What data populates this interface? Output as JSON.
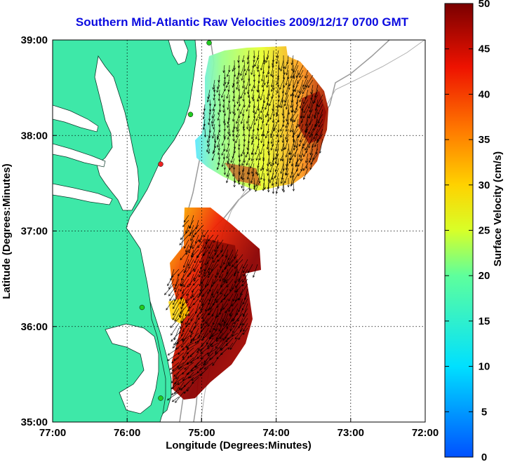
{
  "title": "Southern Mid-Atlantic Raw Velocities 2009/12/17 0700 GMT",
  "axes": {
    "xlabel": "Longitude (Degrees:Minutes)",
    "ylabel": "Latitude (Degrees:Minutes)",
    "xticks": [
      "77:00",
      "76:00",
      "75:00",
      "74:00",
      "73:00",
      "72:00"
    ],
    "yticks": [
      "39:00",
      "38:00",
      "37:00",
      "36:00",
      "35:00"
    ],
    "xlim": [
      -77,
      -72
    ],
    "ylim": [
      35,
      39
    ],
    "grid": "dotted"
  },
  "colorbar": {
    "label": "Surface Velocity (cm/s)",
    "ticks": [
      "50",
      "45",
      "40",
      "35",
      "30",
      "25",
      "20",
      "15",
      "10",
      "5",
      "0"
    ],
    "range": [
      0,
      50
    ],
    "colormap": "jet"
  },
  "colors": {
    "land": "#3ee8a8",
    "title": "#0a0ae0",
    "station_active": "#22cc22",
    "station_inactive": "#ee2222"
  },
  "stations": [
    {
      "lon": -74.9,
      "lat": 38.97,
      "status": "active"
    },
    {
      "lon": -75.15,
      "lat": 38.22,
      "status": "active"
    },
    {
      "lon": -75.55,
      "lat": 37.7,
      "status": "inactive"
    },
    {
      "lon": -75.8,
      "lat": 36.2,
      "status": "active"
    },
    {
      "lon": -75.55,
      "lat": 35.25,
      "status": "active"
    }
  ]
}
